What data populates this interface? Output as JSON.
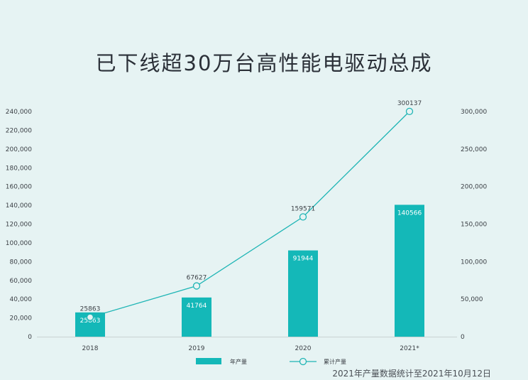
{
  "title": "已下线超30万台高性能电驱动总成",
  "footnote": "2021年产量数据统计至2021年10月12日",
  "colors": {
    "bar": "#14b8b8",
    "line": "#1fb5b5",
    "background": "#e6f3f3",
    "text": "#2b3038"
  },
  "chart_data": {
    "type": "bar",
    "categories": [
      "2018",
      "2019",
      "2020",
      "2021*"
    ],
    "series": [
      {
        "name": "年产量",
        "type": "bar",
        "axis": "left",
        "values": [
          25863,
          41764,
          91944,
          140566
        ],
        "labels": [
          "25863",
          "41764",
          "91944",
          "140566"
        ]
      },
      {
        "name": "累计产量",
        "type": "line",
        "axis": "right",
        "marker": "open-circle",
        "values": [
          25863,
          67627,
          159571,
          300137
        ],
        "labels": [
          "25863",
          "67627",
          "159571",
          "300137"
        ]
      }
    ],
    "left_axis": {
      "ylim": [
        0,
        240000
      ],
      "ticks": [
        "0",
        "20,000",
        "40,000",
        "60,000",
        "80,000",
        "100,000",
        "120,000",
        "140,000",
        "160,000",
        "180,000",
        "200,000",
        "220,000",
        "240,000"
      ]
    },
    "right_axis": {
      "ylim": [
        0,
        300000
      ],
      "ticks": [
        "0",
        "50,000",
        "100,000",
        "150,000",
        "200,000",
        "250,000",
        "300,000"
      ]
    },
    "grid": false,
    "legend": {
      "position": "bottom",
      "entries": [
        "年产量",
        "累计产量"
      ]
    }
  }
}
